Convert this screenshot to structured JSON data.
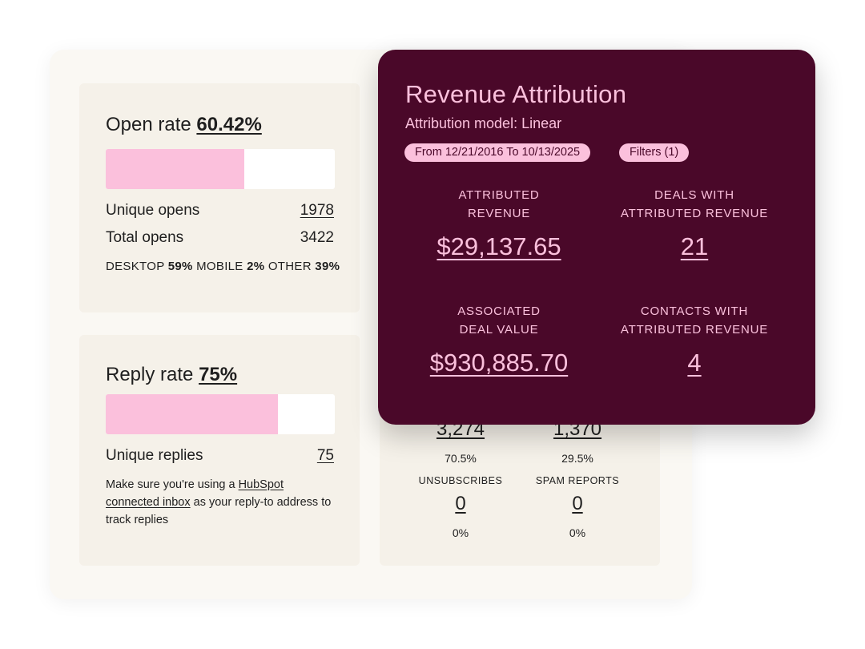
{
  "open_rate": {
    "label": "Open rate",
    "value": "60.42%",
    "bar_fraction": 0.6042,
    "unique_opens_label": "Unique opens",
    "unique_opens_value": "1978",
    "total_opens_label": "Total opens",
    "total_opens_value": "3422",
    "devices": {
      "desktop_label": "DESKTOP",
      "desktop_value": "59%",
      "mobile_label": "MOBILE",
      "mobile_value": "2%",
      "other_label": "OTHER",
      "other_value": "39%"
    }
  },
  "reply_rate": {
    "label": "Reply rate",
    "value": "75%",
    "bar_fraction": 0.75,
    "unique_replies_label": "Unique replies",
    "unique_replies_value": "75",
    "note_pre": "Make  sure you're using a ",
    "note_link": "HubSpot connected inbox",
    "note_post": " as your reply-to address to track replies"
  },
  "delivery_stats": {
    "stat1_value": "3,274",
    "stat1_pct": "70.5%",
    "stat2_value": "1,370",
    "stat2_pct": "29.5%",
    "unsubscribes_label": "UNSUBSCRIBES",
    "unsubscribes_value": "0",
    "unsubscribes_pct": "0%",
    "spam_label": "SPAM REPORTS",
    "spam_value": "0",
    "spam_pct": "0%"
  },
  "revenue": {
    "title": "Revenue Attribution",
    "model": "Attribution model: Linear",
    "date_range": "From 12/21/2016 To 10/13/2025",
    "filters": "Filters (1)",
    "attributed_revenue_label": "ATTRIBUTED\nREVENUE",
    "attributed_revenue_value": "$29,137.65",
    "deals_label": "DEALS WITH\nATTRIBUTED REVENUE",
    "deals_value": "21",
    "associated_label": "ASSOCIATED\nDEAL VALUE",
    "associated_value": "$930,885.70",
    "contacts_label": "CONTACTS WITH\nATTRIBUTED REVENUE",
    "contacts_value": "4"
  },
  "colors": {
    "pink": "#fbc0dc",
    "maroon": "#4a0829",
    "card_bg": "#f5f1e9"
  }
}
